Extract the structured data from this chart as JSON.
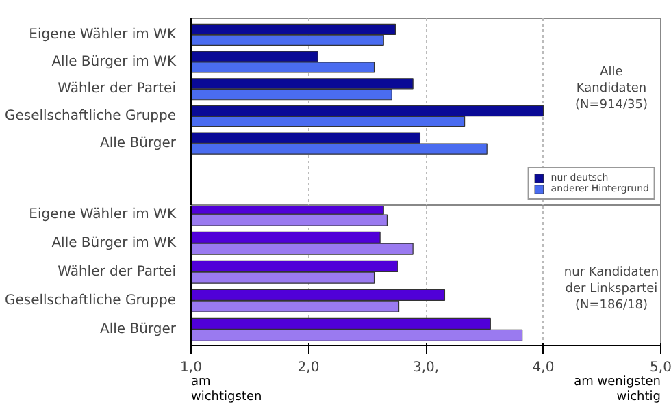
{
  "chart_data": [
    {
      "type": "bar",
      "orientation": "horizontal",
      "categories": [
        "Eigene Wähler im WK",
        "Alle Bürger im WK",
        "Wähler der Partei",
        "Gesellschaftliche Gruppe",
        "Alle Bürger"
      ],
      "series": [
        {
          "name": "nur deutsch",
          "color": "#0a0a96",
          "values": [
            2.74,
            2.08,
            2.89,
            4.0,
            2.95
          ]
        },
        {
          "name": "anderer Hintergrund",
          "color": "#4a6cf0",
          "values": [
            2.64,
            2.56,
            2.71,
            3.33,
            3.52
          ]
        }
      ],
      "xlim": [
        1,
        5
      ],
      "xticks": [
        1,
        2,
        3,
        4,
        5
      ],
      "tick_labels": "y",
      "grid": "x",
      "legend": "bottom right",
      "annotations": [
        "Alle\nKandidaten\n(N=914/35)"
      ]
    },
    {
      "type": "bar",
      "orientation": "horizontal",
      "categories": [
        "Eigene Wähler im WK",
        "Alle Bürger im WK",
        "Wähler der Partei",
        "Gesellschaftliche Gruppe",
        "Alle Bürger"
      ],
      "series": [
        {
          "color": "#5000d8",
          "values": [
            2.64,
            2.61,
            2.76,
            3.16,
            3.55
          ]
        },
        {
          "color": "#9a7af0",
          "values": [
            2.67,
            2.89,
            2.56,
            2.77,
            3.82
          ]
        }
      ],
      "xlim": [
        1,
        5
      ],
      "xticks": [
        {
          "value": 1,
          "label": "1,0"
        },
        {
          "value": 2,
          "label": "2,0"
        },
        {
          "value": 3,
          "label": "3,0,"
        },
        {
          "value": 4,
          "label": "4,0"
        },
        {
          "value": 5,
          "label": "5,0"
        }
      ],
      "grid": "x",
      "annotations": [
        "nur Kandidaten\nder Linkspartei\n(N=186/18)",
        "am\nwichtigsten",
        "am wenigsten\nwichtig"
      ]
    }
  ]
}
